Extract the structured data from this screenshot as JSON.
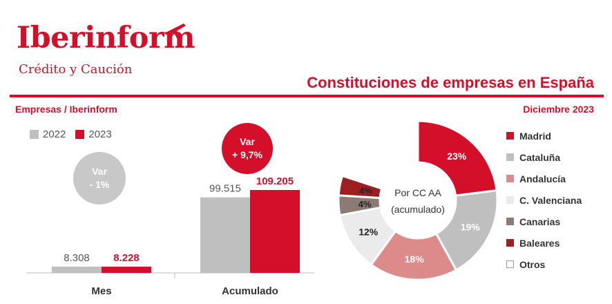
{
  "logo": {
    "name": "Iberinform",
    "tagline": "Crédito y Caución"
  },
  "title": "Constituciones de empresas en España",
  "left_subtitle": "Empresas / Iberinform",
  "right_subtitle": "Diciembre 2023",
  "colors": {
    "brand": "#d40f2a",
    "gray": "#bfbfbf"
  },
  "badges": {
    "mes": {
      "line1": "Var",
      "line2": "- 1%"
    },
    "acumulado": {
      "line1": "Var",
      "line2": "+ 9,7%"
    }
  },
  "chart_data": [
    {
      "type": "bar",
      "categories": [
        "Mes",
        "Acumulado"
      ],
      "series": [
        {
          "name": "2022",
          "color": "#bfbfbf",
          "values": [
            8308,
            99515
          ],
          "labels": [
            "8.308",
            "99.515"
          ]
        },
        {
          "name": "2023",
          "color": "#d40f2a",
          "values": [
            8228,
            109205
          ],
          "labels": [
            "8.228",
            "109.205"
          ]
        }
      ]
    },
    {
      "type": "pie",
      "donut": true,
      "center_label": [
        "Por CC AA",
        "(acumulado)"
      ],
      "slices": [
        {
          "name": "Madrid",
          "value": 23,
          "label": "23%",
          "color": "#d40f2a"
        },
        {
          "name": "Cataluña",
          "value": 19,
          "label": "19%",
          "color": "#bfbfbf"
        },
        {
          "name": "Andalucía",
          "value": 18,
          "label": "18%",
          "color": "#dd8a8a"
        },
        {
          "name": "C. Valenciana",
          "value": 12,
          "label": "12%",
          "color": "#ebebeb"
        },
        {
          "name": "Canarias",
          "value": 4,
          "label": "4%",
          "color": "#8c7b74"
        },
        {
          "name": "Baleares",
          "value": 4,
          "label": "4%",
          "color": "#9e1f22"
        },
        {
          "name": "Otros",
          "value": 20,
          "label": "",
          "color": "#ffffff"
        }
      ]
    }
  ]
}
